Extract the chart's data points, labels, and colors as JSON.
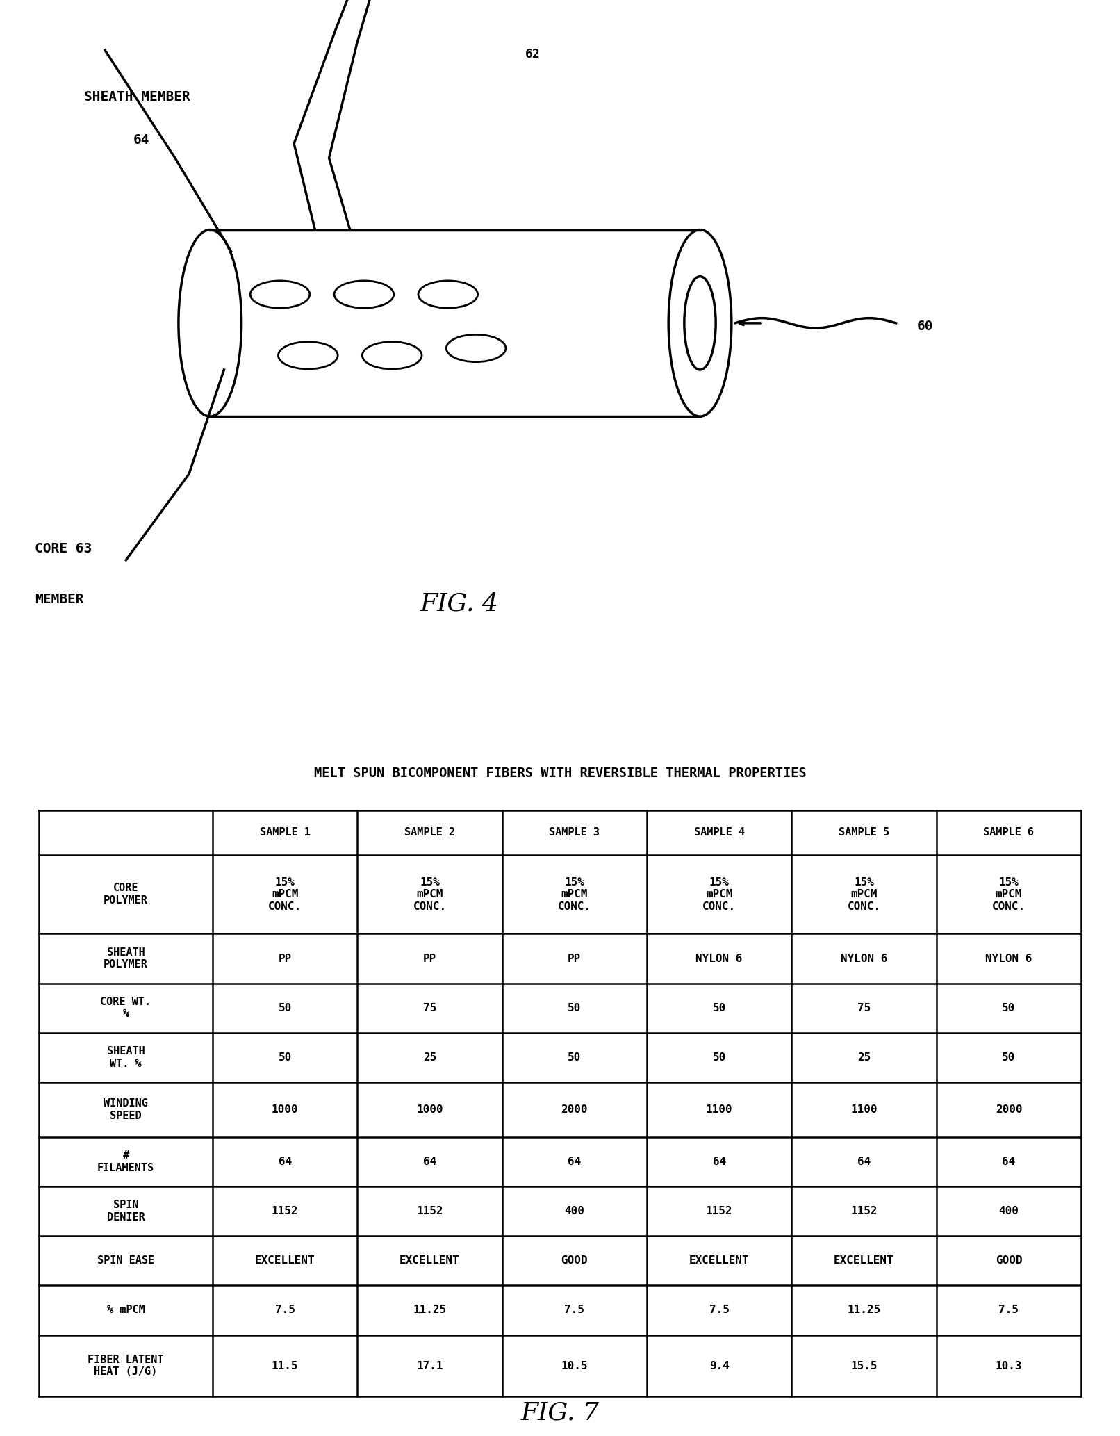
{
  "title_table": "MELT SPUN BICOMPONENT FIBERS WITH REVERSIBLE THERMAL PROPERTIES",
  "fig4_label": "FIG. 4",
  "fig7_label": "FIG. 7",
  "col_headers": [
    "",
    "SAMPLE 1",
    "SAMPLE 2",
    "SAMPLE 3",
    "SAMPLE 4",
    "SAMPLE 5",
    "SAMPLE 6"
  ],
  "row_labels": [
    "CORE\nPOLYMER",
    "SHEATH\nPOLYMER",
    "CORE WT.\n%",
    "SHEATH\nWT. %",
    "WINDING\nSPEED",
    "#\nFILAMENTS",
    "SPIN\nDENIER",
    "SPIN EASE",
    "% mPCM",
    "FIBER LATENT\nHEAT (J/G)"
  ],
  "table_data": [
    [
      "15%\nmPCM\nCONC.",
      "15%\nmPCM\nCONC.",
      "15%\nmPCM\nCONC.",
      "15%\nmPCM\nCONC.",
      "15%\nmPCM\nCONC.",
      "15%\nmPCM\nCONC."
    ],
    [
      "PP",
      "PP",
      "PP",
      "NYLON 6",
      "NYLON 6",
      "NYLON 6"
    ],
    [
      "50",
      "75",
      "50",
      "50",
      "75",
      "50"
    ],
    [
      "50",
      "25",
      "50",
      "50",
      "25",
      "50"
    ],
    [
      "1000",
      "1000",
      "2000",
      "1100",
      "1100",
      "2000"
    ],
    [
      "64",
      "64",
      "64",
      "64",
      "64",
      "64"
    ],
    [
      "1152",
      "1152",
      "400",
      "1152",
      "1152",
      "400"
    ],
    [
      "EXCELLENT",
      "EXCELLENT",
      "GOOD",
      "EXCELLENT",
      "EXCELLENT",
      "GOOD"
    ],
    [
      "7.5",
      "11.25",
      "7.5",
      "7.5",
      "11.25",
      "7.5"
    ],
    [
      "11.5",
      "17.1",
      "10.5",
      "9.4",
      "15.5",
      "10.3"
    ]
  ],
  "bg_color": "#ffffff",
  "text_color": "#000000"
}
